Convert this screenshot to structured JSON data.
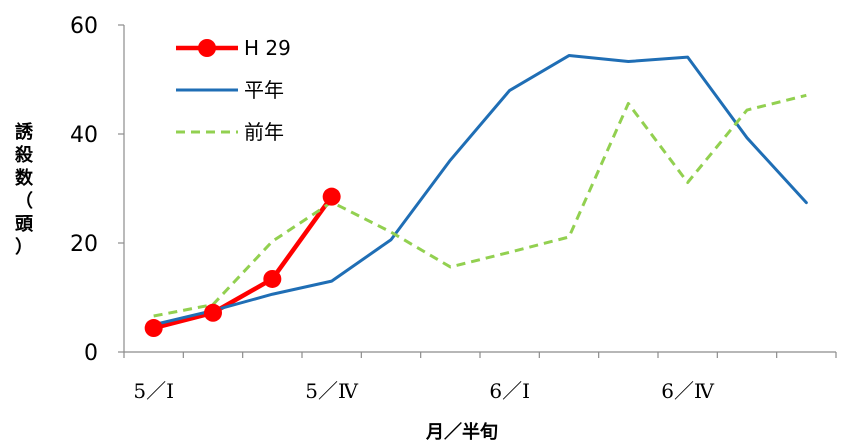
{
  "chart_data": {
    "type": "line",
    "xlabel": "月／半旬",
    "ylabel_chars": [
      "誘",
      "殺",
      "数",
      "（",
      "頭",
      "）"
    ],
    "ylim": [
      0,
      60
    ],
    "y_ticks": [
      "0",
      "20",
      "40",
      "60"
    ],
    "x_tick_labels": [
      {
        "label": "5／Ⅰ",
        "position": 1
      },
      {
        "label": "5／Ⅳ",
        "position": 4
      },
      {
        "label": "6／Ⅰ",
        "position": 7
      },
      {
        "label": "6／Ⅳ",
        "position": 10
      }
    ],
    "x_periods": 12,
    "grid": false,
    "legend_position": "top-left",
    "series": [
      {
        "name": "H 29",
        "style": "solid-markers",
        "color": "#ff0000",
        "values": [
          4.4,
          7.2,
          13.4,
          28.5
        ]
      },
      {
        "name": "平年",
        "style": "solid",
        "color": "#1f6eb5",
        "values": [
          5.0,
          7.6,
          10.6,
          13.0,
          20.6,
          35.2,
          48.0,
          54.4,
          53.3,
          54.1,
          39.3,
          27.4
        ]
      },
      {
        "name": "前年",
        "style": "dashed",
        "color": "#92d050",
        "values": [
          6.6,
          8.7,
          20.3,
          27.5,
          22.0,
          15.6,
          18.3,
          21.1,
          45.6,
          31.1,
          44.4,
          47.1
        ]
      }
    ]
  }
}
